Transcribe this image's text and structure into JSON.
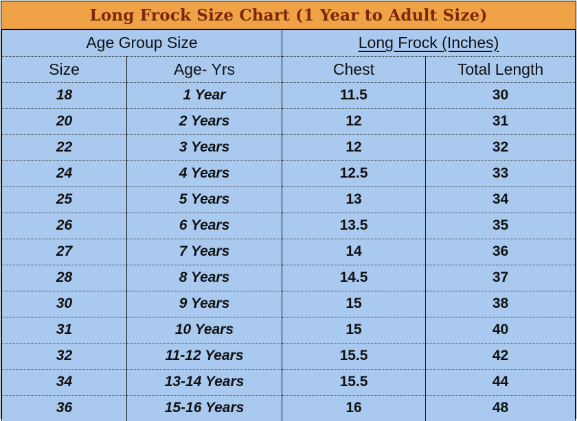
{
  "title": "Long Frock Size Chart (1 Year to Adult Size)",
  "group_headers": [
    "Age Group Size",
    "Long Frock (Inches)"
  ],
  "columns": [
    "Size",
    "Age- Yrs",
    "Chest",
    "Total Length"
  ],
  "rows": [
    [
      "18",
      "1 Year",
      "11.5",
      "30"
    ],
    [
      "20",
      "2 Years",
      "12",
      "31"
    ],
    [
      "22",
      "3 Years",
      "12",
      "32"
    ],
    [
      "24",
      "4 Years",
      "12.5",
      "33"
    ],
    [
      "25",
      "5 Years",
      "13",
      "34"
    ],
    [
      "26",
      "6 Years",
      "13.5",
      "35"
    ],
    [
      "27",
      "7 Years",
      "14",
      "36"
    ],
    [
      "28",
      "8 Years",
      "14.5",
      "37"
    ],
    [
      "30",
      "9 Years",
      "15",
      "38"
    ],
    [
      "31",
      "10 Years",
      "15",
      "40"
    ],
    [
      "32",
      "11-12 Years",
      "15.5",
      "42"
    ],
    [
      "34",
      "13-14 Years",
      "15.5",
      "44"
    ],
    [
      "36",
      "15-16 Years",
      "16",
      "48"
    ]
  ],
  "colors": {
    "title_bg": "#f0a247",
    "title_text": "#7a2a08",
    "table_bg": "#a9c9ef"
  }
}
